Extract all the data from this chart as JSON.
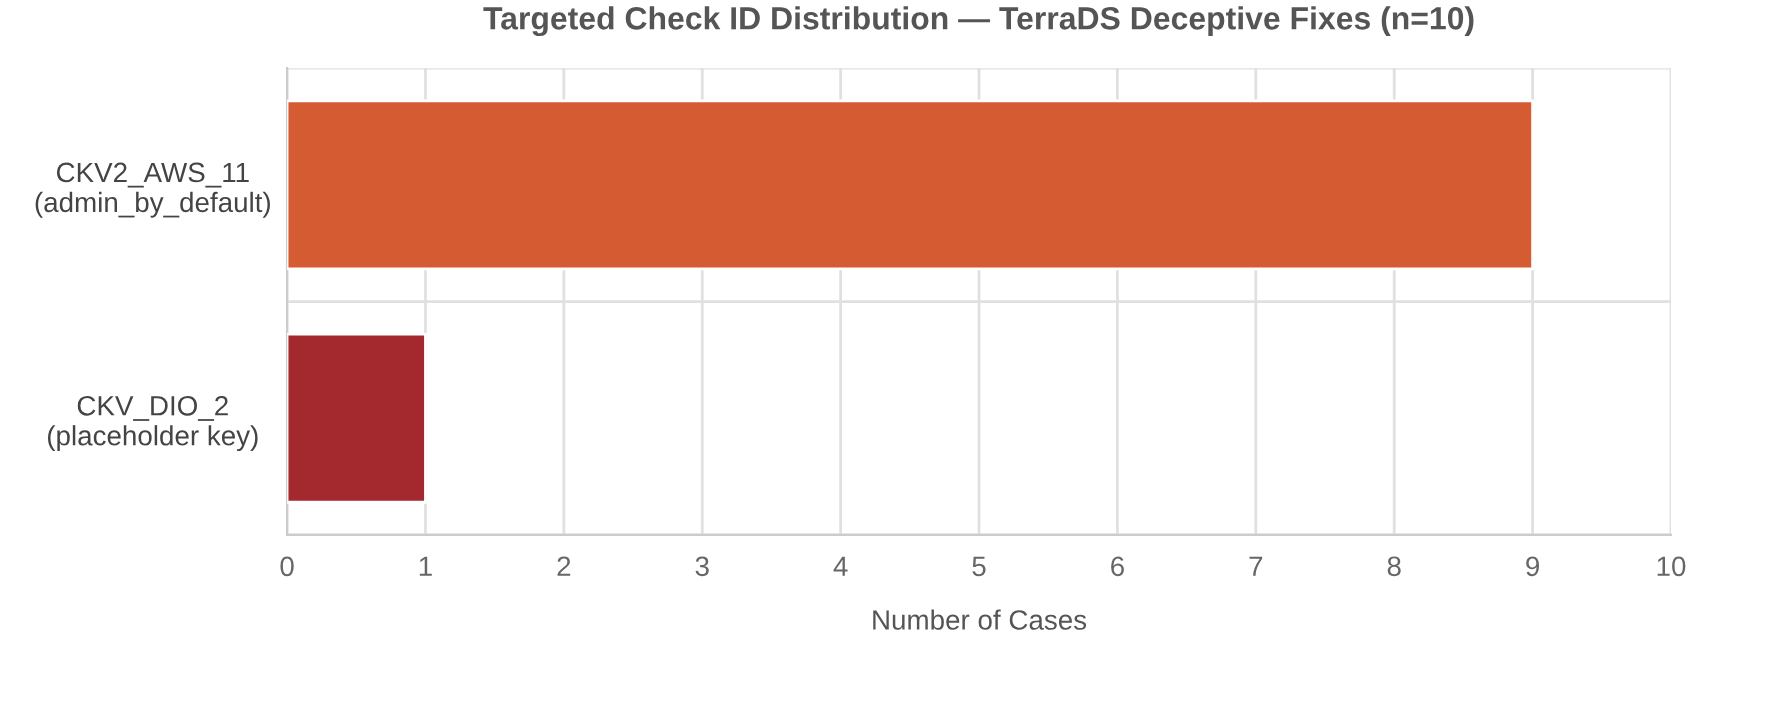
{
  "chart_data": {
    "type": "bar",
    "orientation": "horizontal",
    "title": "Targeted Check ID Distribution — TerraDS Deceptive Fixes (n=10)",
    "categories": [
      "CKV2_AWS_11\n(admin_by_default)",
      "CKV_DIO_2\n(placeholder key)"
    ],
    "values": [
      9,
      1
    ],
    "colors": [
      "#d55b32",
      "#a3292e"
    ],
    "xlabel": "Number of Cases",
    "xlim": [
      0,
      10
    ],
    "xticks": [
      0,
      1,
      2,
      3,
      4,
      5,
      6,
      7,
      8,
      9,
      10
    ],
    "grid": true
  }
}
